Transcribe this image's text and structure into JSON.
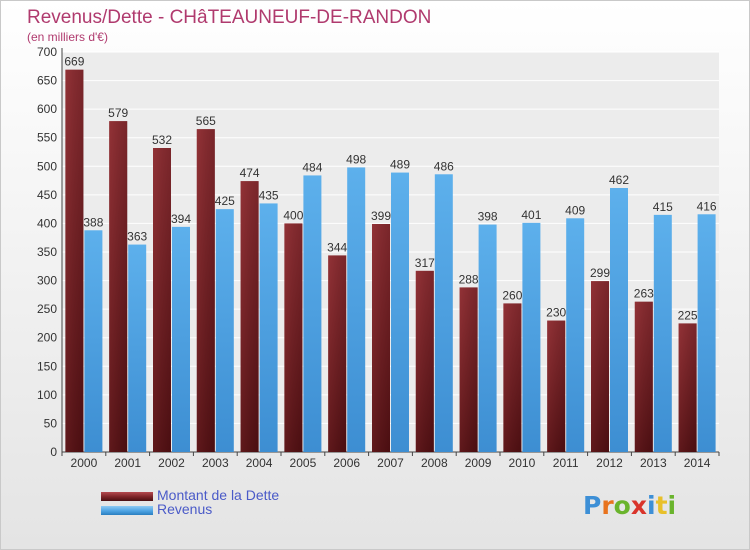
{
  "chart_data": {
    "type": "bar",
    "title": "Revenus/Dette - CHâTEAUNEUF-DE-RANDON",
    "subtitle": "(en milliers d'€)",
    "categories": [
      "2000",
      "2001",
      "2002",
      "2003",
      "2004",
      "2005",
      "2006",
      "2007",
      "2008",
      "2009",
      "2010",
      "2011",
      "2012",
      "2013",
      "2014"
    ],
    "series": [
      {
        "name": "Montant de la Dette",
        "color": "#7a2326",
        "values": [
          669,
          579,
          532,
          565,
          474,
          400,
          344,
          399,
          317,
          288,
          260,
          230,
          299,
          263,
          225
        ]
      },
      {
        "name": "Revenus",
        "color": "#4da3e3",
        "values": [
          388,
          363,
          394,
          425,
          435,
          484,
          498,
          489,
          486,
          398,
          401,
          409,
          462,
          415,
          416
        ]
      }
    ],
    "ylim": [
      0,
      700
    ],
    "yticks": [
      0,
      50,
      100,
      150,
      200,
      250,
      300,
      350,
      400,
      450,
      500,
      550,
      600,
      650,
      700
    ],
    "grid": true,
    "legend": "bottom-left"
  },
  "logo": {
    "text": "Proxiti",
    "colors": [
      "#3d8fd6",
      "#e8731e",
      "#6ab42d",
      "#d9342b",
      "#3d8fd6",
      "#e8c02a",
      "#6ab42d"
    ]
  }
}
